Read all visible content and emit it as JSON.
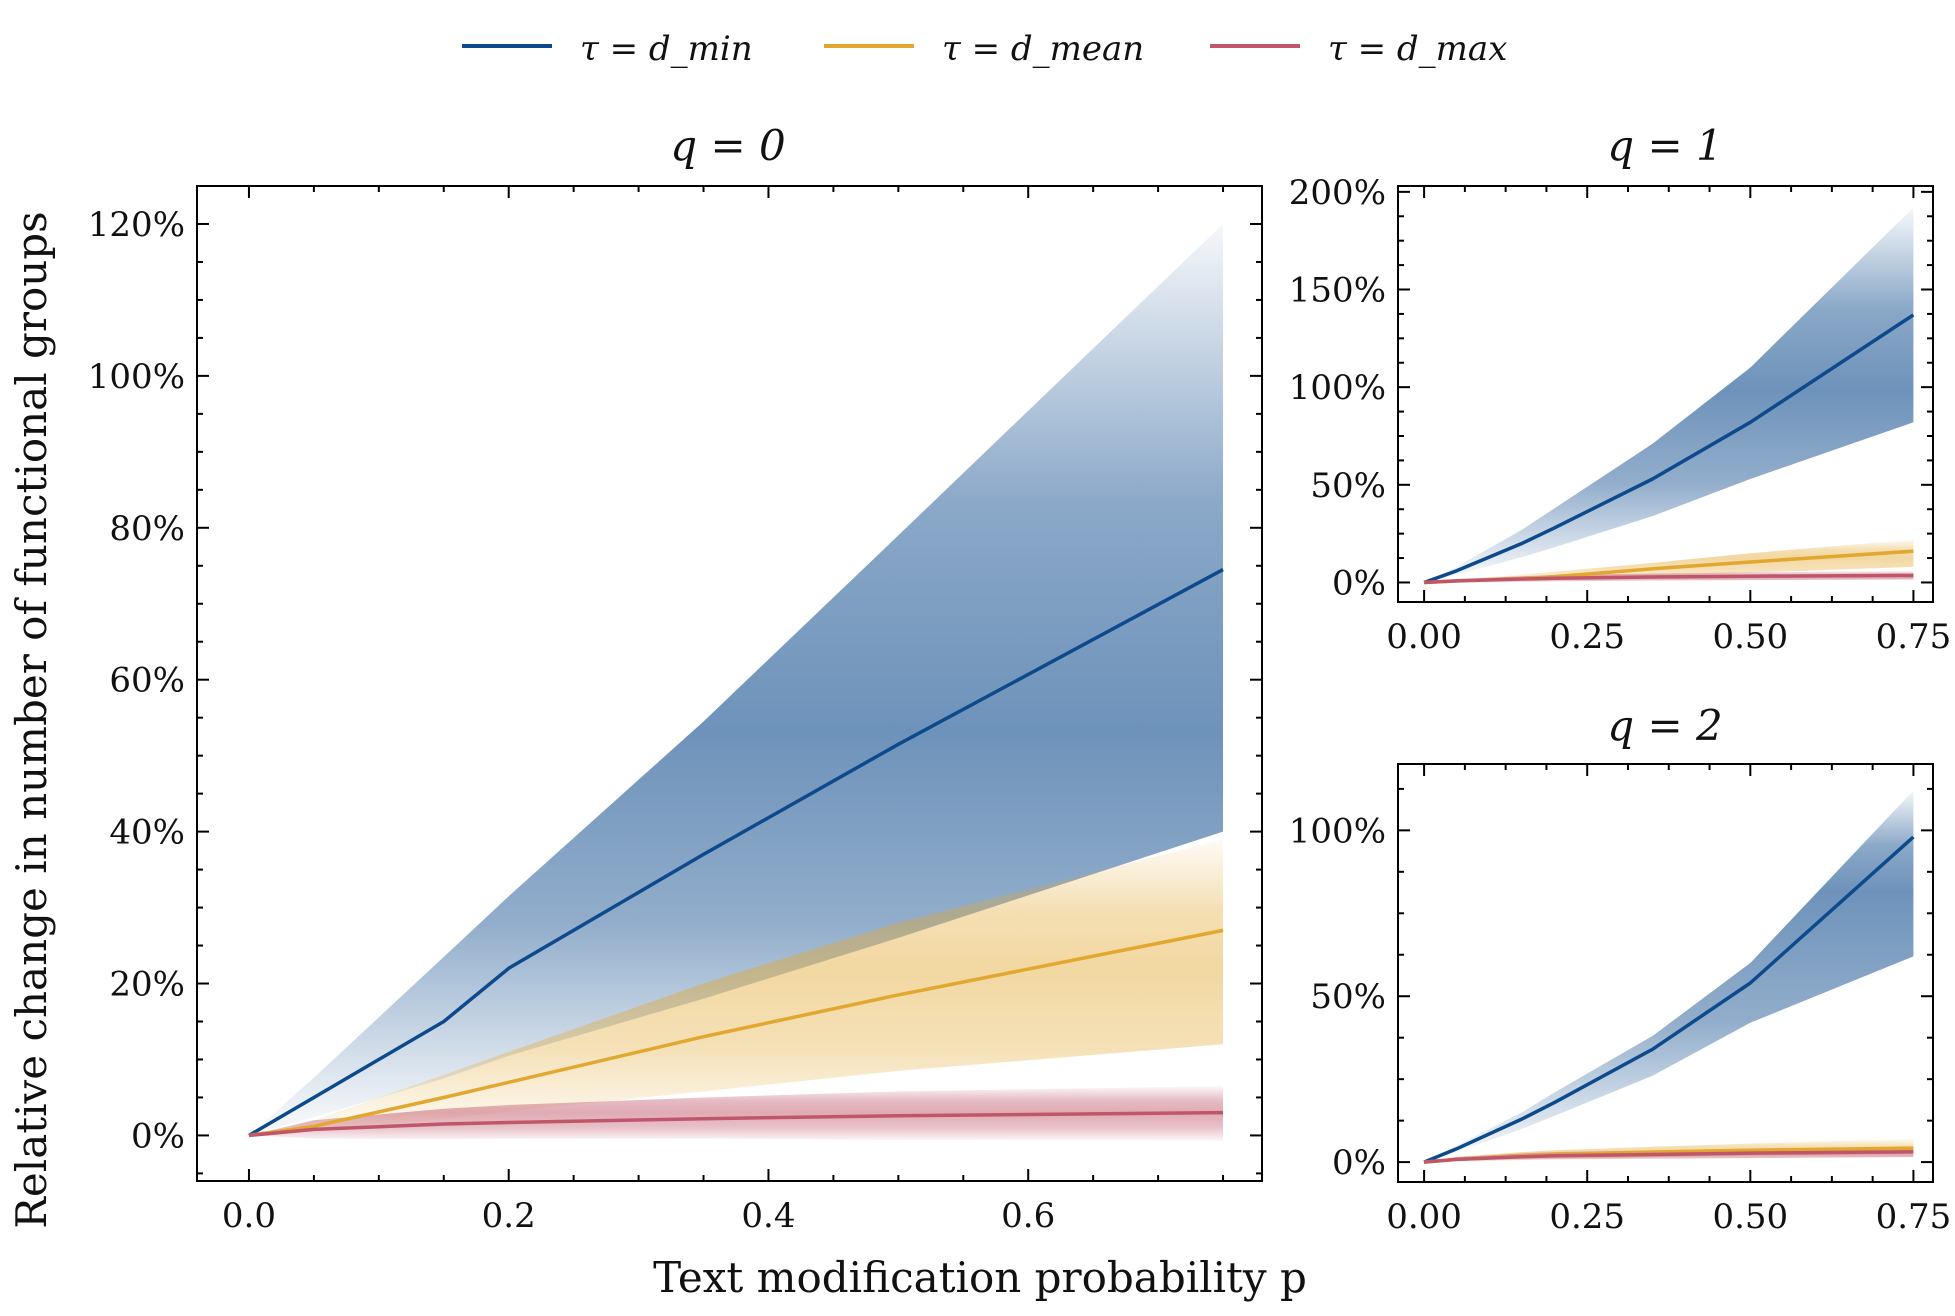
{
  "legend": [
    {
      "label": "τ = d_min",
      "color": "#0d4a8c"
    },
    {
      "label": "τ = d_mean",
      "color": "#e2a72e"
    },
    {
      "label": "τ = d_max",
      "color": "#c0566a"
    }
  ],
  "figure": {
    "ylabel": "Relative change in number of functional groups",
    "xlabel": "Text modification probability p"
  },
  "chart_data": [
    {
      "type": "line",
      "title": "q = 0",
      "xlim": [
        -0.04,
        0.78
      ],
      "ylim": [
        -6,
        125
      ],
      "xticks": [
        "0.0",
        "0.2",
        "0.4",
        "0.6"
      ],
      "xtick_values": [
        0,
        0.2,
        0.4,
        0.6
      ],
      "yticks": [
        "0%",
        "20%",
        "40%",
        "60%",
        "80%",
        "100%",
        "120%"
      ],
      "ytick_values": [
        0,
        20,
        40,
        60,
        80,
        100,
        120
      ],
      "x": [
        0,
        0.05,
        0.15,
        0.2,
        0.35,
        0.5,
        0.75
      ],
      "series": [
        {
          "name": "τ = d_min",
          "values": [
            0,
            5,
            15,
            22,
            37,
            51.5,
            74.5
          ],
          "band_upper": [
            0,
            7.6,
            23.5,
            31.5,
            54.5,
            79,
            120
          ],
          "band_lower": [
            0,
            2.4,
            7.5,
            10.5,
            18,
            26,
            40
          ]
        },
        {
          "name": "τ = d_mean",
          "values": [
            0,
            1.2,
            5,
            7,
            13,
            18.5,
            27
          ],
          "band_upper": [
            0,
            2,
            8,
            11,
            20,
            28,
            39
          ],
          "band_lower": [
            0,
            0.6,
            2.2,
            3.2,
            5.8,
            8.5,
            12
          ]
        },
        {
          "name": "τ = d_max",
          "values": [
            0,
            0.8,
            1.5,
            1.7,
            2.2,
            2.6,
            3
          ],
          "band_upper": [
            0,
            2,
            3.5,
            4,
            5,
            5.8,
            6.5
          ],
          "band_lower": [
            0,
            -0.4,
            -0.5,
            -0.4,
            -0.4,
            -0.6,
            -0.7
          ]
        }
      ]
    },
    {
      "type": "line",
      "title": "q = 1",
      "xlim": [
        -0.04,
        0.78
      ],
      "ylim": [
        -10,
        203
      ],
      "xticks": [
        "0.00",
        "0.25",
        "0.50",
        "0.75"
      ],
      "xtick_values": [
        0,
        0.25,
        0.5,
        0.75
      ],
      "yticks": [
        "0%",
        "50%",
        "100%",
        "150%",
        "200%"
      ],
      "ytick_values": [
        0,
        50,
        100,
        150,
        200
      ],
      "x": [
        0,
        0.05,
        0.15,
        0.2,
        0.35,
        0.5,
        0.75
      ],
      "series": [
        {
          "name": "τ = d_min",
          "values": [
            0,
            6,
            20,
            28,
            53,
            82,
            137
          ],
          "band_upper": [
            0,
            8,
            27,
            38,
            71,
            110,
            192
          ],
          "band_lower": [
            0,
            4,
            13,
            18,
            34,
            53,
            82
          ]
        },
        {
          "name": "τ = d_mean",
          "values": [
            0,
            0.8,
            2,
            3,
            7,
            10.5,
            16
          ],
          "band_upper": [
            0,
            1.5,
            4,
            5.5,
            10,
            15,
            22
          ],
          "band_lower": [
            0,
            0.2,
            0.5,
            1,
            3,
            5,
            8
          ]
        },
        {
          "name": "τ = d_max",
          "values": [
            0,
            0.8,
            1.8,
            2.2,
            2.8,
            3.2,
            3.6
          ],
          "band_upper": [
            0,
            1.8,
            3.2,
            3.8,
            4.6,
            5.2,
            6
          ],
          "band_lower": [
            0,
            -0.2,
            0.2,
            0.5,
            1,
            1.2,
            1.5
          ]
        }
      ]
    },
    {
      "type": "line",
      "title": "q = 2",
      "xlim": [
        -0.04,
        0.78
      ],
      "ylim": [
        -6,
        120
      ],
      "xticks": [
        "0.00",
        "0.25",
        "0.50",
        "0.75"
      ],
      "xtick_values": [
        0,
        0.25,
        0.5,
        0.75
      ],
      "yticks": [
        "0%",
        "50%",
        "100%"
      ],
      "ytick_values": [
        0,
        50,
        100
      ],
      "x": [
        0,
        0.05,
        0.15,
        0.2,
        0.35,
        0.5,
        0.75
      ],
      "series": [
        {
          "name": "τ = d_min",
          "values": [
            0,
            4,
            13,
            18,
            34,
            54,
            98
          ],
          "band_upper": [
            0,
            5,
            15,
            21,
            38,
            60,
            112
          ],
          "band_lower": [
            0,
            3,
            10,
            14,
            26,
            42,
            62
          ]
        },
        {
          "name": "τ = d_mean",
          "values": [
            0,
            0.8,
            1.8,
            2.2,
            3,
            3.6,
            4.2
          ],
          "band_upper": [
            0,
            1.6,
            3,
            3.6,
            4.6,
            5.6,
            7
          ],
          "band_lower": [
            0,
            0.2,
            0.8,
            1,
            1.5,
            2,
            2.5
          ]
        },
        {
          "name": "τ = d_max",
          "values": [
            0,
            0.8,
            1.6,
            1.9,
            2.3,
            2.7,
            3.1
          ],
          "band_upper": [
            0,
            1.5,
            2.6,
            3,
            3.6,
            4.1,
            4.6
          ],
          "band_lower": [
            0,
            0.1,
            0.6,
            0.8,
            1,
            1.2,
            1.5
          ]
        }
      ]
    }
  ]
}
